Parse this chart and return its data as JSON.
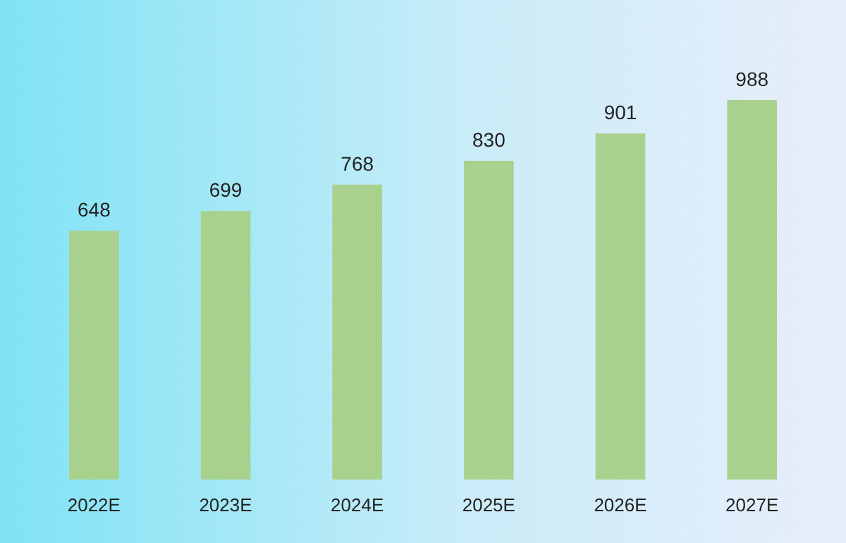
{
  "chart_data": {
    "type": "bar",
    "categories": [
      "2022E",
      "2023E",
      "2024E",
      "2025E",
      "2026E",
      "2027E"
    ],
    "values": [
      648,
      699,
      768,
      830,
      901,
      988
    ],
    "color": "#a9d18e",
    "data_labels": true
  }
}
